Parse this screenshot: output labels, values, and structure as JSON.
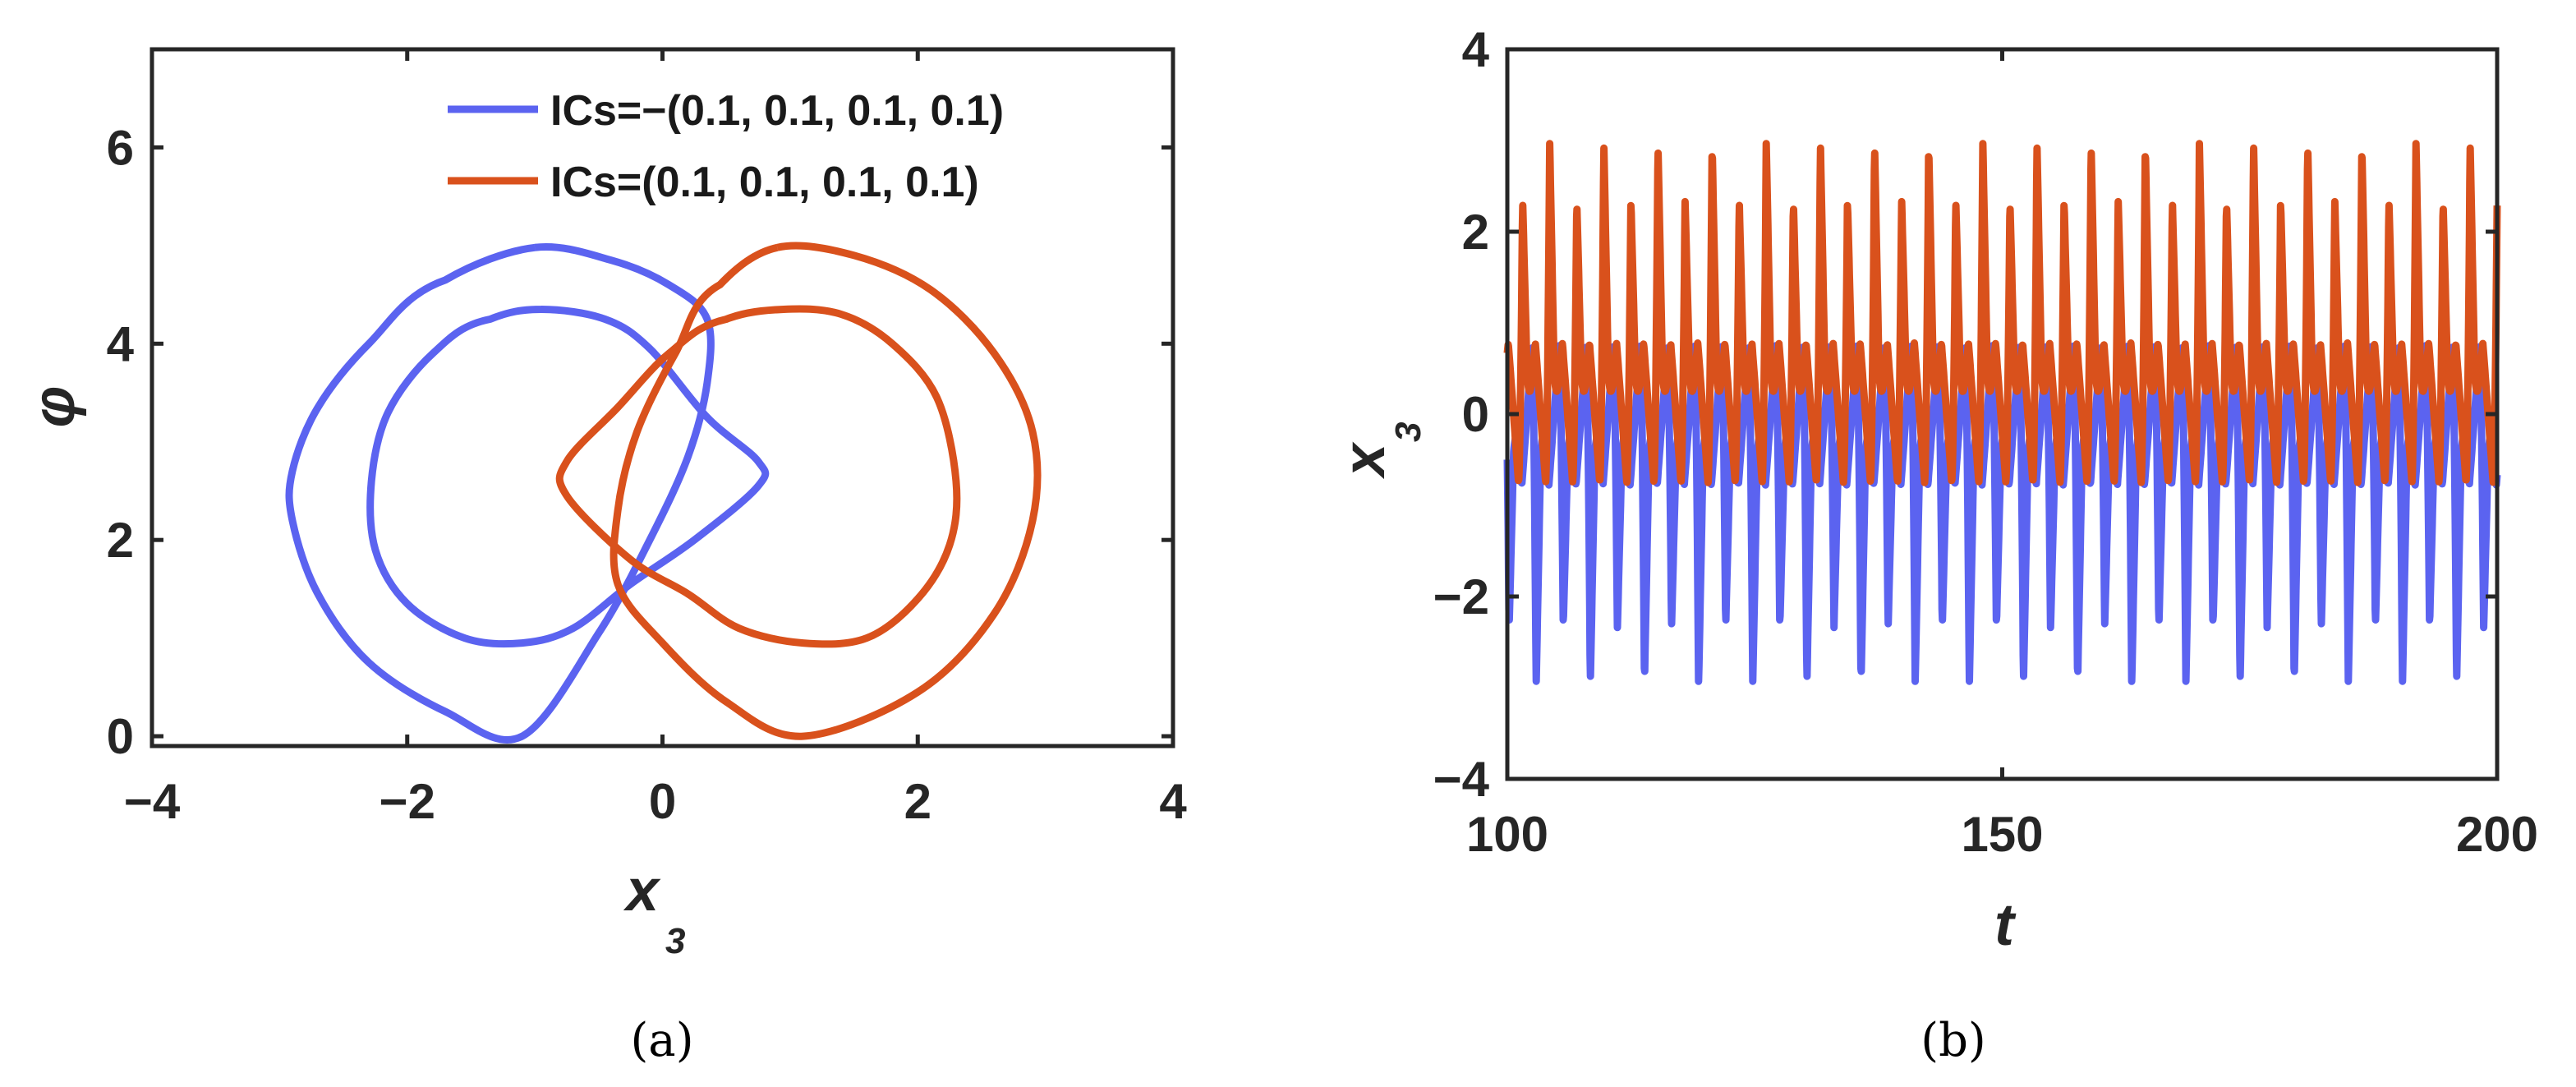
{
  "colors": {
    "blue": "#5B63F0",
    "orange": "#D9511C",
    "axes": "#262626"
  },
  "chart_data": [
    {
      "id": "a",
      "type": "line",
      "caption": "(a)",
      "xlabel": "x",
      "xlabel_sub": "3",
      "ylabel": "φ",
      "xlim": [
        -4,
        4
      ],
      "ylim": [
        -0.1,
        7
      ],
      "xticks": [
        -4,
        -2,
        0,
        2,
        4
      ],
      "xtick_labels": [
        "−4",
        "−2",
        "0",
        "2",
        "4"
      ],
      "yticks": [
        0,
        2,
        4,
        6
      ],
      "ytick_labels": [
        "0",
        "2",
        "4",
        "6"
      ],
      "legend_position": "top-right",
      "series": [
        {
          "name": "ICs=−(0.1, 0.1, 0.1, 0.1)",
          "color": "#5B63F0",
          "x": [
            -1.0,
            -0.4,
            0.05,
            0.35,
            0.35,
            0.2,
            -0.1,
            -0.5,
            -1.1,
            -1.7,
            -2.3,
            -2.7,
            -2.9,
            -2.9,
            -2.7,
            -2.3,
            -1.7,
            -1.0
          ],
          "y": [
            4.98,
            4.85,
            4.6,
            4.25,
            3.6,
            2.85,
            2.0,
            1.05,
            0.0,
            0.25,
            0.75,
            1.45,
            2.2,
            2.7,
            3.35,
            4.0,
            4.65,
            4.98
          ]
        },
        {
          "name": "",
          "color": "#5B63F0",
          "x": [
            -0.95,
            -0.45,
            -0.1,
            0.35,
            0.75,
            0.75,
            0.25,
            -0.25,
            -0.7,
            -1.1,
            -1.55,
            -2.0,
            -2.25,
            -2.28,
            -2.15,
            -1.8,
            -1.35,
            -0.95
          ],
          "y": [
            4.35,
            4.25,
            3.95,
            3.25,
            2.8,
            2.55,
            2.0,
            1.55,
            1.1,
            0.95,
            1.0,
            1.35,
            1.9,
            2.6,
            3.3,
            3.9,
            4.25,
            4.35
          ]
        },
        {
          "name": "ICs=(0.1, 0.1, 0.1, 0.1)",
          "color": "#D9511C",
          "x": [
            0.9,
            1.5,
            2.1,
            2.6,
            2.9,
            2.9,
            2.6,
            2.0,
            1.1,
            0.5,
            0.0,
            -0.35,
            -0.35,
            -0.2,
            0.1,
            0.45,
            0.9
          ],
          "y": [
            4.98,
            4.9,
            4.55,
            3.9,
            3.1,
            2.2,
            1.25,
            0.45,
            0.0,
            0.35,
            0.95,
            1.55,
            2.3,
            3.1,
            3.9,
            4.6,
            4.98
          ]
        },
        {
          "name": "",
          "color": "#D9511C",
          "x": [
            0.95,
            1.4,
            1.8,
            2.15,
            2.3,
            2.25,
            2.0,
            1.6,
            1.1,
            0.6,
            0.2,
            -0.25,
            -0.75,
            -0.75,
            -0.35,
            0.05,
            0.5,
            0.95
          ],
          "y": [
            4.35,
            4.3,
            4.0,
            3.45,
            2.6,
            1.95,
            1.4,
            1.0,
            0.95,
            1.1,
            1.45,
            1.8,
            2.45,
            2.8,
            3.35,
            3.9,
            4.25,
            4.35
          ]
        }
      ]
    },
    {
      "id": "b",
      "type": "line",
      "caption": "(b)",
      "xlabel": "t",
      "ylabel": "x",
      "ylabel_sub": "3",
      "xlim": [
        100,
        200
      ],
      "ylim": [
        -4,
        4
      ],
      "xticks": [
        100,
        150,
        200
      ],
      "xtick_labels": [
        "100",
        "150",
        "200"
      ],
      "yticks": [
        -4,
        -2,
        0,
        2,
        4
      ],
      "ytick_labels": [
        "−4",
        "−2",
        "0",
        "2",
        "4"
      ],
      "signal": {
        "period": 5.47,
        "big_max": 2.97,
        "small_max": 2.35,
        "offset_min": -0.75,
        "second_peak": 0.4,
        "small_peak": 0.78
      },
      "series": [
        {
          "name": "",
          "color": "#5B63F0",
          "min": -2.97,
          "max": 0.78
        },
        {
          "name": "",
          "color": "#D9511C",
          "min": -0.75,
          "max": 2.97
        }
      ]
    }
  ]
}
